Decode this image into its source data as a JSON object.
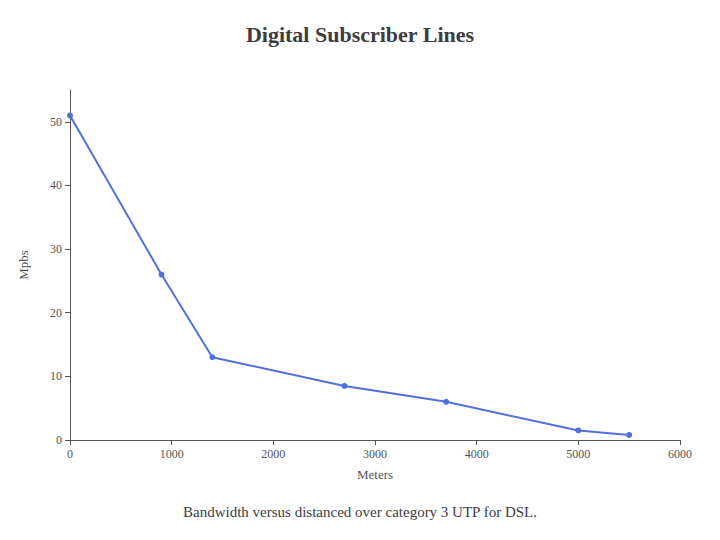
{
  "chart_data": {
    "type": "line",
    "title": "Digital Subscriber Lines",
    "subtitle": "Bandwidth versus distanced over category 3 UTP for DSL.",
    "xlabel": "Meters",
    "ylabel": "Mpbs",
    "x": [
      0,
      900,
      1400,
      2700,
      3700,
      5000,
      5500
    ],
    "values": [
      51,
      26,
      13,
      8.5,
      6,
      1.5,
      0.8
    ],
    "xlim": [
      0,
      6000
    ],
    "ylim": [
      0,
      55
    ],
    "xticks": [
      0,
      1000,
      2000,
      3000,
      4000,
      5000,
      6000
    ],
    "yticks": [
      0,
      10,
      20,
      30,
      40,
      50
    ],
    "marker": "circle",
    "grid": false
  }
}
